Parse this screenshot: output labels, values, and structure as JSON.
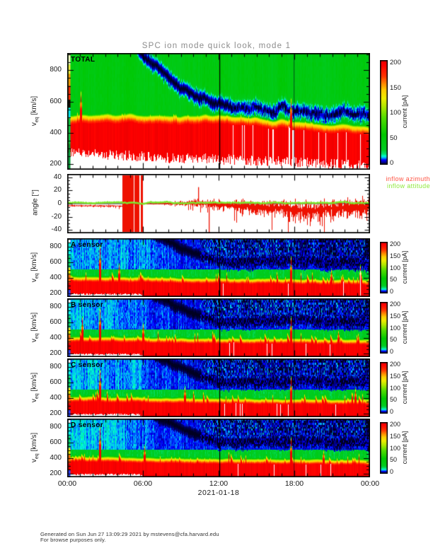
{
  "title": "SPC ion mode quick look, mode 1",
  "x_axis": {
    "tick_labels": [
      "00:00",
      "06:00",
      "12:00",
      "18:00",
      "00:00"
    ],
    "date_label": "2021-01-18",
    "hours": [
      0,
      24
    ]
  },
  "footer": {
    "line1": "Generated on Sun Jun 27 13:09:29 2021 by mstevens@cfa.harvard.edu",
    "line2": "For browse purposes only."
  },
  "ylabel_parts": {
    "main": "v",
    "sub": "eq",
    "unit": " [km/s]"
  },
  "colormap_stops": [
    [
      0,
      "#000022"
    ],
    [
      4,
      "#000090"
    ],
    [
      9,
      "#0000ff"
    ],
    [
      13,
      "#00aaff"
    ],
    [
      17,
      "#00ffcc"
    ],
    [
      21,
      "#00e070"
    ],
    [
      30,
      "#00cc22"
    ],
    [
      60,
      "#00c800"
    ],
    [
      95,
      "#55dd00"
    ],
    [
      115,
      "#aae800"
    ],
    [
      133,
      "#eeee00"
    ],
    [
      150,
      "#ffcc00"
    ],
    [
      163,
      "#ff8800"
    ],
    [
      178,
      "#ff3300"
    ],
    [
      200,
      "#ff0000"
    ],
    [
      210,
      "#e80000"
    ]
  ],
  "events": {
    "cursor_line_hour": 12.07,
    "secondary_line_hour": 17.95
  },
  "sensor_features": {
    "kind": "sensor",
    "beam_kmps": [
      [
        0,
        1030
      ],
      [
        6,
        1030
      ],
      [
        7.5,
        900
      ],
      [
        9,
        780
      ],
      [
        10.5,
        690
      ],
      [
        12,
        600
      ],
      [
        15,
        605
      ],
      [
        18,
        615
      ],
      [
        21,
        600
      ],
      [
        24,
        585
      ]
    ],
    "beam_halfwidth": 75,
    "core_top_kmps": [
      [
        0,
        398
      ],
      [
        6,
        388
      ],
      [
        10,
        378
      ],
      [
        14,
        372
      ],
      [
        18,
        368
      ],
      [
        24,
        358
      ]
    ],
    "ramp_kmps": 30,
    "red_span_kmps": 50,
    "cutoff_kmps": [
      [
        0,
        190
      ],
      [
        5.7,
        188
      ],
      [
        6.1,
        152
      ],
      [
        24,
        150
      ]
    ],
    "cutoff_noise": 10,
    "bg_top_pA": [
      [
        0,
        14
      ],
      [
        5,
        12.5
      ],
      [
        8,
        10
      ],
      [
        12,
        8
      ],
      [
        18,
        7
      ],
      [
        24,
        6
      ]
    ],
    "green_pA": 32,
    "stripe_after_hour": 10.5,
    "spike_prob": 0.13,
    "spike_max_kmps": 120,
    "gap_prob": 0.025,
    "left_strip": [
      [
        "#ffffff",
        0,
        0.08
      ],
      [
        "#00ffee",
        0.08,
        0.3
      ],
      [
        "#00dd66",
        0.3,
        0.5
      ],
      [
        "#ffee00",
        0.5,
        0.62
      ],
      [
        "#ff6600",
        0.62,
        0.76
      ],
      [
        "#dd0000",
        0.76,
        0.88
      ],
      [
        "#2244ff",
        0.88,
        1
      ]
    ]
  },
  "chart_data": [
    {
      "id": "total",
      "type": "heatmap",
      "label": "TOTAL",
      "ylabel": "v_eq [km/s]",
      "yticks": [
        200,
        400,
        600,
        800
      ],
      "ylim_kmps": [
        165,
        910
      ],
      "x_hours": [
        0,
        24
      ],
      "colorbar": {
        "label": "current [pA]",
        "ticks": [
          0,
          50,
          100,
          150,
          200
        ],
        "range_pA": [
          0,
          210
        ]
      },
      "seed": 3,
      "features": {
        "kind": "total",
        "beam_kmps": [
          [
            0,
            1000
          ],
          [
            4.8,
            1000
          ],
          [
            6.2,
            880
          ],
          [
            8,
            760
          ],
          [
            9.5,
            670
          ],
          [
            11,
            600
          ],
          [
            12.5,
            565
          ],
          [
            14,
            550
          ],
          [
            17,
            545
          ],
          [
            20,
            535
          ],
          [
            24,
            520
          ]
        ],
        "beam_halfwidth": 52,
        "core_top_kmps": [
          [
            0,
            505
          ],
          [
            12,
            502
          ],
          [
            15,
            485
          ],
          [
            18,
            465
          ],
          [
            21,
            450
          ],
          [
            24,
            432
          ]
        ],
        "ramp_kmps": 15,
        "red_span_kmps": 45,
        "cutoff_kmps": [
          [
            0,
            285
          ],
          [
            4,
            265
          ],
          [
            8,
            250
          ],
          [
            12,
            240
          ],
          [
            16,
            228
          ],
          [
            20,
            214
          ],
          [
            24,
            195
          ]
        ],
        "cutoff_noise": 34,
        "bg_pA": 46,
        "stripe_after_hour": 13,
        "spike_prob": 0.05,
        "spike_max_kmps": 30,
        "gap_prob": 0.05,
        "gap_hours": [
          17.58,
          17.88
        ],
        "tall_spikes": [
          [
            1.05,
            655
          ],
          [
            17.72,
            615
          ]
        ],
        "left_strip": [
          [
            "#ffffcc",
            0,
            0.1
          ],
          [
            "#ffee44",
            0.1,
            0.18
          ],
          [
            "#ff9900",
            0.18,
            0.28
          ],
          [
            "#ff2200",
            0.28,
            0.4
          ],
          [
            "#1a0000",
            0.4,
            0.47
          ],
          [
            "#00eeff",
            0.47,
            0.56
          ],
          [
            "#00cc44",
            0.56,
            0.78
          ],
          [
            "#009933",
            0.78,
            1
          ]
        ]
      }
    },
    {
      "id": "angle",
      "type": "line",
      "ylabel": "angle [°]",
      "yticks": [
        -40,
        -20,
        0,
        20,
        40
      ],
      "ylim_deg": [
        -45,
        45
      ],
      "seed": 9,
      "series": [
        {
          "name": "inflow azimuth",
          "color": "#ee1100",
          "label_color": "#ff5544"
        },
        {
          "name": "inflow attitude",
          "color": "#7de82a",
          "label_color": "#8fe83c"
        }
      ],
      "azimuth": {
        "base_deg": [
          [
            0,
            -3
          ],
          [
            4.3,
            -3.5
          ],
          [
            5.8,
            -0.5
          ],
          [
            7,
            0
          ],
          [
            8.5,
            0.5
          ],
          [
            10,
            1
          ],
          [
            11,
            0.5
          ],
          [
            12,
            -1.5
          ],
          [
            13,
            -3
          ],
          [
            14,
            -4
          ],
          [
            15,
            -5
          ],
          [
            16,
            -7
          ],
          [
            17,
            -6
          ],
          [
            18,
            -9
          ],
          [
            19,
            -11
          ],
          [
            20,
            -9
          ],
          [
            21,
            -7
          ],
          [
            22,
            -6
          ],
          [
            23,
            -5.5
          ],
          [
            24,
            -4.5
          ]
        ],
        "amp_deg": [
          [
            0,
            1.2
          ],
          [
            4.3,
            1.5
          ],
          [
            5.8,
            0.7
          ],
          [
            7,
            1
          ],
          [
            8.5,
            3
          ],
          [
            10,
            5.5
          ],
          [
            11,
            6
          ],
          [
            12,
            7
          ],
          [
            13,
            8
          ],
          [
            14,
            9.5
          ],
          [
            15,
            11
          ],
          [
            16,
            13
          ],
          [
            17,
            12
          ],
          [
            18,
            14.5
          ],
          [
            19,
            15
          ],
          [
            20,
            14
          ],
          [
            21,
            12.5
          ],
          [
            22,
            12
          ],
          [
            23,
            13
          ],
          [
            24,
            12
          ]
        ],
        "saturated_hours": [
          [
            4.35,
            5.7
          ],
          [
            5.82,
            5.95
          ]
        ],
        "spikes": [
          [
            10.35,
            25
          ],
          [
            11.2,
            -45
          ]
        ]
      },
      "attitude": {
        "base_deg": 1.2,
        "amp_deg": 1.1
      }
    },
    {
      "id": "a",
      "type": "heatmap",
      "label": "A sensor",
      "ylabel": "v_eq [km/s]",
      "yticks": [
        200,
        400,
        600,
        800
      ],
      "ylim_kmps": [
        150,
        905
      ],
      "x_hours": [
        0,
        24
      ],
      "colorbar": {
        "label": "current [pA]",
        "ticks": [
          0,
          50,
          100,
          150,
          200
        ],
        "range_pA": [
          0,
          210
        ]
      },
      "seed": 11,
      "features_ref": "sensor",
      "tall_spikes": [
        [
          2.6,
          800
        ],
        [
          4.1,
          560
        ],
        [
          17.72,
          650
        ],
        [
          20.9,
          500
        ],
        [
          23.2,
          540
        ]
      ]
    },
    {
      "id": "b",
      "type": "heatmap",
      "label": "B sensor",
      "ylabel": "v_eq [km/s]",
      "yticks": [
        200,
        400,
        600,
        800
      ],
      "ylim_kmps": [
        150,
        905
      ],
      "x_hours": [
        0,
        24
      ],
      "colorbar": {
        "label": "current [pA]",
        "ticks": [
          0,
          50,
          100,
          150,
          200
        ],
        "range_pA": [
          0,
          210
        ]
      },
      "seed": 17,
      "features_ref": "sensor",
      "tall_spikes": [
        [
          1.2,
          650
        ],
        [
          2.6,
          760
        ],
        [
          6,
          560
        ],
        [
          17.72,
          640
        ],
        [
          21.5,
          470
        ]
      ]
    },
    {
      "id": "c",
      "type": "heatmap",
      "label": "C sensor",
      "ylabel": "v_eq [km/s]",
      "yticks": [
        200,
        400,
        600,
        800
      ],
      "ylim_kmps": [
        150,
        905
      ],
      "x_hours": [
        0,
        24
      ],
      "colorbar": {
        "label": "current [pA]",
        "ticks": [
          0,
          50,
          100,
          150,
          200
        ],
        "range_pA": [
          0,
          210
        ]
      },
      "seed": 23,
      "features_ref": "sensor",
      "tall_spikes": [
        [
          2.6,
          740
        ],
        [
          9.3,
          520
        ],
        [
          17.72,
          655
        ],
        [
          22.8,
          500
        ]
      ]
    },
    {
      "id": "d",
      "type": "heatmap",
      "label": "D sensor",
      "ylabel": "v_eq [km/s]",
      "yticks": [
        200,
        400,
        600,
        800
      ],
      "ylim_kmps": [
        150,
        905
      ],
      "x_hours": [
        0,
        24
      ],
      "colorbar": {
        "label": "current [pA]",
        "ticks": [
          0,
          50,
          100,
          150,
          200
        ],
        "range_pA": [
          0,
          210
        ]
      },
      "seed": 31,
      "features_ref": "sensor",
      "tall_spikes": [
        [
          2.6,
          780
        ],
        [
          6.1,
          540
        ],
        [
          17.72,
          645
        ],
        [
          20.3,
          480
        ]
      ]
    }
  ]
}
